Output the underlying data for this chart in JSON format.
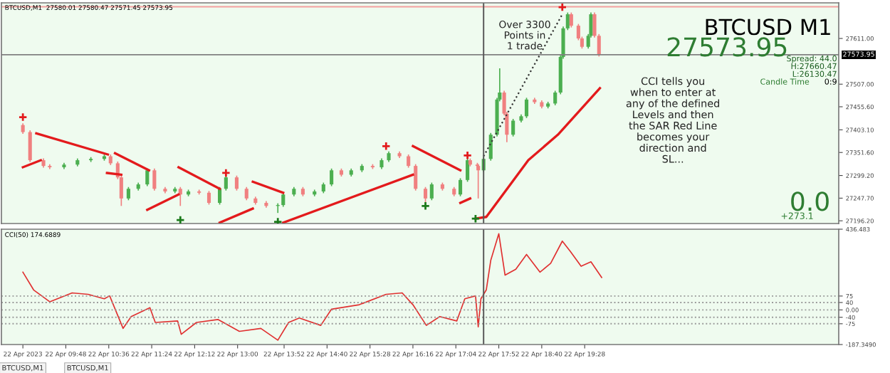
{
  "chart_data": [
    {
      "type": "candlestick",
      "x": [
        "2023-04-22T09:00",
        "2023-04-22T09:08",
        "2023-04-22T09:23",
        "2023-04-22T09:30",
        "2023-04-22T09:46",
        "2023-04-22T10:01",
        "2023-04-22T10:16",
        "2023-04-22T10:31",
        "2023-04-22T10:38",
        "2023-04-22T10:46",
        "2023-04-22T10:50",
        "2023-04-22T10:58",
        "2023-04-22T11:09",
        "2023-04-22T11:19",
        "2023-04-22T11:27",
        "2023-04-22T11:39",
        "2023-04-22T11:50",
        "2023-04-22T11:56",
        "2023-04-22T12:05",
        "2023-04-22T12:17",
        "2023-04-22T12:28",
        "2023-04-22T12:40",
        "2023-04-22T12:47",
        "2023-04-22T12:59",
        "2023-04-22T13:10",
        "2023-04-22T13:20",
        "2023-04-22T13:32",
        "2023-04-22T13:45",
        "2023-04-22T13:51",
        "2023-04-22T14:03",
        "2023-04-22T14:13",
        "2023-04-22T14:26",
        "2023-04-22T14:36",
        "2023-04-22T14:45",
        "2023-04-22T14:56",
        "2023-04-22T15:07",
        "2023-04-22T15:19",
        "2023-04-22T15:31",
        "2023-04-22T15:41",
        "2023-04-22T15:49",
        "2023-04-22T16:01",
        "2023-04-22T16:11",
        "2023-04-22T16:19",
        "2023-04-22T16:30",
        "2023-04-22T16:37",
        "2023-04-22T16:49",
        "2023-04-22T17:02",
        "2023-04-22T17:09",
        "2023-04-22T17:17",
        "2023-04-22T17:20",
        "2023-04-22T17:28",
        "2023-04-22T17:29",
        "2023-04-22T17:35",
        "2023-04-22T17:43",
        "2023-04-22T17:50",
        "2023-04-22T17:53",
        "2023-04-22T17:58",
        "2023-04-22T18:01",
        "2023-04-22T18:08",
        "2023-04-22T18:17",
        "2023-04-22T18:23",
        "2023-04-22T18:32",
        "2023-04-22T18:40",
        "2023-04-22T18:47",
        "2023-04-22T18:55",
        "2023-04-22T19:01",
        "2023-04-22T19:04",
        "2023-04-22T19:09",
        "2023-04-22T19:13",
        "2023-04-22T19:21",
        "2023-04-22T19:25",
        "2023-04-22T19:32",
        "2023-04-22T19:35",
        "2023-04-22T19:39",
        "2023-04-22T19:44"
      ],
      "ohlc": [
        [
          27414,
          27418,
          27394,
          27398
        ],
        [
          27398,
          27402,
          27330,
          27334
        ],
        [
          27334,
          27338,
          27317,
          27321
        ],
        [
          27321,
          27325,
          27314,
          27318
        ],
        [
          27318,
          27328,
          27314,
          27324
        ],
        [
          27324,
          27338,
          27320,
          27334
        ],
        [
          27334,
          27341,
          27330,
          27337
        ],
        [
          27337,
          27347,
          27333,
          27343
        ],
        [
          27343,
          27347,
          27323,
          27327
        ],
        [
          27327,
          27331,
          27291,
          27295
        ],
        [
          27295,
          27299,
          27230,
          27247
        ],
        [
          27247,
          27273,
          27243,
          27269
        ],
        [
          27269,
          27283,
          27265,
          27279
        ],
        [
          27279,
          27315,
          27275,
          27311
        ],
        [
          27311,
          27315,
          27265,
          27269
        ],
        [
          27269,
          27273,
          27259,
          27263
        ],
        [
          27263,
          27273,
          27259,
          27269
        ],
        [
          27269,
          27273,
          27230,
          27256
        ],
        [
          27256,
          27267,
          27252,
          27263
        ],
        [
          27263,
          27267,
          27256,
          27260
        ],
        [
          27260,
          27264,
          27233,
          27237
        ],
        [
          27237,
          27273,
          27233,
          27269
        ],
        [
          27269,
          27299,
          27265,
          27295
        ],
        [
          27295,
          27299,
          27265,
          27269
        ],
        [
          27269,
          27273,
          27243,
          27247
        ],
        [
          27247,
          27251,
          27233,
          27237
        ],
        [
          27237,
          27241,
          27226,
          27230
        ],
        [
          27230,
          27236,
          27214,
          27232
        ],
        [
          27232,
          27260,
          27228,
          27256
        ],
        [
          27256,
          27273,
          27252,
          27269
        ],
        [
          27269,
          27273,
          27252,
          27256
        ],
        [
          27256,
          27267,
          27252,
          27263
        ],
        [
          27263,
          27283,
          27259,
          27279
        ],
        [
          27279,
          27315,
          27275,
          27311
        ],
        [
          27311,
          27315,
          27297,
          27301
        ],
        [
          27301,
          27315,
          27297,
          27311
        ],
        [
          27311,
          27325,
          27307,
          27321
        ],
        [
          27321,
          27325,
          27314,
          27318
        ],
        [
          27318,
          27338,
          27314,
          27334
        ],
        [
          27334,
          27354,
          27330,
          27350
        ],
        [
          27350,
          27354,
          27339,
          27343
        ],
        [
          27343,
          27347,
          27317,
          27321
        ],
        [
          27321,
          27325,
          27265,
          27269
        ],
        [
          27269,
          27273,
          27237,
          27247
        ],
        [
          27247,
          27283,
          27243,
          27279
        ],
        [
          27279,
          27283,
          27265,
          27269
        ],
        [
          27269,
          27273,
          27252,
          27256
        ],
        [
          27256,
          27293,
          27252,
          27289
        ],
        [
          27289,
          27338,
          27285,
          27334
        ],
        [
          27334,
          27338,
          27320,
          27324
        ],
        [
          27324,
          27328,
          27317,
          27321
        ],
        [
          27321,
          27325,
          27247,
          27311
        ],
        [
          27311,
          27341,
          27307,
          27337
        ],
        [
          27337,
          27396,
          27333,
          27392
        ],
        [
          27392,
          27476,
          27388,
          27472
        ],
        [
          27472,
          27543,
          27468,
          27488
        ],
        [
          27488,
          27492,
          27436,
          27440
        ],
        [
          27440,
          27444,
          27375,
          27392
        ],
        [
          27392,
          27428,
          27388,
          27424
        ],
        [
          27424,
          27438,
          27420,
          27434
        ],
        [
          27434,
          27476,
          27430,
          27472
        ],
        [
          27472,
          27476,
          27462,
          27466
        ],
        [
          27466,
          27470,
          27452,
          27456
        ],
        [
          27456,
          27467,
          27452,
          27463
        ],
        [
          27463,
          27492,
          27459,
          27488
        ],
        [
          27488,
          27573,
          27484,
          27569
        ],
        [
          27569,
          27638,
          27565,
          27634
        ],
        [
          27634,
          27670,
          27630,
          27666
        ],
        [
          27666,
          27670,
          27636,
          27640
        ],
        [
          27640,
          27644,
          27607,
          27611
        ],
        [
          27611,
          27615,
          27588,
          27592
        ],
        [
          27592,
          27621,
          27588,
          27617
        ],
        [
          27617,
          27670,
          27613,
          27666
        ],
        [
          27666,
          27670,
          27613,
          27617
        ],
        [
          27617,
          27621,
          27570,
          27574
        ]
      ],
      "colors": [
        "#f08080",
        "#f08080",
        "#f08080",
        "#f08080",
        "#4caf50",
        "#4caf50",
        "#4caf50",
        "#4caf50",
        "#f08080",
        "#f08080",
        "#f08080",
        "#4caf50",
        "#4caf50",
        "#4caf50",
        "#f08080",
        "#f08080",
        "#4caf50",
        "#f08080",
        "#4caf50",
        "#f08080",
        "#f08080",
        "#4caf50",
        "#4caf50",
        "#f08080",
        "#f08080",
        "#f08080",
        "#f08080",
        "#4caf50",
        "#4caf50",
        "#4caf50",
        "#f08080",
        "#4caf50",
        "#4caf50",
        "#4caf50",
        "#f08080",
        "#4caf50",
        "#4caf50",
        "#f08080",
        "#4caf50",
        "#4caf50",
        "#f08080",
        "#f08080",
        "#f08080",
        "#f08080",
        "#4caf50",
        "#f08080",
        "#f08080",
        "#4caf50",
        "#4caf50",
        "#f08080",
        "#f08080",
        "#f08080",
        "#4caf50",
        "#4caf50",
        "#4caf50",
        "#4caf50",
        "#f08080",
        "#f08080",
        "#4caf50",
        "#4caf50",
        "#4caf50",
        "#f08080",
        "#f08080",
        "#4caf50",
        "#4caf50",
        "#4caf50",
        "#4caf50",
        "#4caf50",
        "#f08080",
        "#f08080",
        "#f08080",
        "#4caf50",
        "#4caf50",
        "#f08080",
        "#f08080"
      ],
      "series": [
        {
          "type": "line",
          "color": "#e31a1c",
          "x": [
            "2023-04-22T09:00",
            "2023-04-22T09:20"
          ],
          "values": [
            27318,
            27334
          ]
        },
        {
          "type": "line",
          "color": "#e31a1c",
          "x": [
            "2023-04-22T09:15",
            "2023-04-22T10:35"
          ],
          "values": [
            27395,
            27347
          ]
        },
        {
          "type": "line",
          "color": "#e31a1c",
          "x": [
            "2023-04-22T10:34",
            "2023-04-22T10:50"
          ],
          "values": [
            27305,
            27301
          ]
        },
        {
          "type": "line",
          "color": "#e31a1c",
          "x": [
            "2023-04-22T10:43",
            "2023-04-22T11:21"
          ],
          "values": [
            27350,
            27311
          ]
        },
        {
          "type": "line",
          "color": "#e31a1c",
          "x": [
            "2023-04-22T11:19",
            "2023-04-22T11:54"
          ],
          "values": [
            27221,
            27256
          ]
        },
        {
          "type": "line",
          "color": "#e31a1c",
          "x": [
            "2023-04-22T11:54",
            "2023-04-22T12:40"
          ],
          "values": [
            27318,
            27269
          ]
        },
        {
          "type": "line",
          "color": "#e31a1c",
          "x": [
            "2023-04-22T12:40",
            "2023-04-22T13:17"
          ],
          "values": [
            27192,
            27224
          ]
        },
        {
          "type": "line",
          "color": "#e31a1c",
          "x": [
            "2023-04-22T13:17",
            "2023-04-22T13:51"
          ],
          "values": [
            27285,
            27260
          ]
        },
        {
          "type": "line",
          "color": "#e31a1c",
          "x": [
            "2023-04-22T13:51",
            "2023-04-22T16:16"
          ],
          "values": [
            27192,
            27301
          ]
        },
        {
          "type": "line",
          "color": "#e31a1c",
          "x": [
            "2023-04-22T16:16",
            "2023-04-22T17:09"
          ],
          "values": [
            27366,
            27311
          ]
        },
        {
          "type": "line",
          "color": "#e31a1c",
          "x": [
            "2023-04-22T17:09",
            "2023-04-22T17:20"
          ],
          "values": [
            27237,
            27247
          ]
        },
        {
          "type": "line",
          "color": "#e31a1c",
          "x": [
            "2023-04-22T17:26",
            "2023-04-22T17:38",
            "2023-04-22T18:25",
            "2023-04-22T18:58",
            "2023-04-22T19:45"
          ],
          "values": [
            27201,
            27205,
            27334,
            27392,
            27498
          ]
        },
        {
          "type": "line",
          "color": "#333333",
          "line_style": "dotted",
          "x": [
            "2023-04-22T17:35",
            "2023-04-22T19:03"
          ],
          "values": [
            27343,
            27666
          ]
        },
        {
          "type": "scatter",
          "color": "#e31a1c",
          "marker": "cross",
          "x": [
            "2023-04-22T09:00",
            "2023-04-22T12:47",
            "2023-04-22T15:46",
            "2023-04-22T17:17",
            "2023-04-22T19:03"
          ],
          "values": [
            27432,
            27305,
            27366,
            27345,
            27682
          ]
        },
        {
          "type": "scatter",
          "color": "#1b7a1b",
          "marker": "cross",
          "x": [
            "2023-04-22T11:56",
            "2023-04-22T13:45",
            "2023-04-22T16:30",
            "2023-04-22T17:26"
          ],
          "values": [
            27198,
            27194,
            27230,
            27201
          ]
        }
      ],
      "xlim": [
        "2023-04-22T08:36",
        "2023-04-23T00:12"
      ],
      "ylim": [
        27190,
        27692
      ],
      "yticks": [
        {
          "value": 27611,
          "label": "27611.00"
        },
        {
          "value": 27507,
          "label": "27507.00"
        },
        {
          "value": 27455.6,
          "label": "27455.60"
        },
        {
          "value": 27403.1,
          "label": "27403.10"
        },
        {
          "value": 27351.6,
          "label": "27351.60"
        },
        {
          "value": 27299.2,
          "label": "27299.20"
        },
        {
          "value": 27247.7,
          "label": "27247.70"
        },
        {
          "value": 27196.2,
          "label": "27196.20"
        }
      ],
      "tick_labels": "y",
      "ref_lines": [
        {
          "axis": "y",
          "value": 27573.95,
          "label": "27573.95",
          "color": "#808080"
        },
        {
          "axis": "y",
          "value": 27683,
          "color": "#f4a0a0"
        },
        {
          "axis": "x",
          "value": "2023-04-22T17:35",
          "color": "#555555"
        }
      ],
      "annotations": [
        "BTCUSD,M1  27580.01 27580.47 27571.45 27573.95",
        "BTCUSD M1",
        "27573.95",
        "Spread: 44.0",
        "H:27660.47",
        "L:26130.47",
        "Candle Time",
        "0:9",
        "Over 3300\nPoints in\n1 trade",
        "CCI tells you\nwhen to enter at\nany of the defined\nLevels and then\nthe SAR Red Line\nbecomes your\ndirection and\nSL...",
        "0.0",
        "+273.1"
      ]
    },
    {
      "type": "line",
      "color": "#e03030",
      "x": [
        "2023-04-22T09:00",
        "2023-04-22T09:12",
        "2023-04-22T09:30",
        "2023-04-22T09:55",
        "2023-04-22T10:13",
        "2023-04-22T10:31",
        "2023-04-22T10:37",
        "2023-04-22T10:52",
        "2023-04-22T11:01",
        "2023-04-22T11:22",
        "2023-04-22T11:28",
        "2023-04-22T11:53",
        "2023-04-22T11:57",
        "2023-04-22T12:14",
        "2023-04-22T12:38",
        "2023-04-22T13:02",
        "2023-04-22T13:26",
        "2023-04-22T13:45",
        "2023-04-22T13:57",
        "2023-04-22T14:09",
        "2023-04-22T14:33",
        "2023-04-22T14:45",
        "2023-04-22T15:16",
        "2023-04-22T15:46",
        "2023-04-22T16:04",
        "2023-04-22T16:16",
        "2023-04-22T16:31",
        "2023-04-22T16:46",
        "2023-04-22T17:05",
        "2023-04-22T17:14",
        "2023-04-22T17:26",
        "2023-04-22T17:29",
        "2023-04-22T17:32",
        "2023-04-22T17:38",
        "2023-04-22T17:43",
        "2023-04-22T17:52",
        "2023-04-22T17:59",
        "2023-04-22T18:11",
        "2023-04-22T18:23",
        "2023-04-22T18:38",
        "2023-04-22T18:50",
        "2023-04-22T19:03",
        "2023-04-22T19:12",
        "2023-04-22T19:24",
        "2023-04-22T19:35",
        "2023-04-22T19:47"
      ],
      "values": [
        204,
        108,
        44,
        92,
        84,
        60,
        76,
        -100,
        -36,
        12,
        -68,
        -60,
        -132,
        -68,
        -52,
        -116,
        -100,
        -164,
        -68,
        -44,
        -84,
        4,
        28,
        84,
        92,
        28,
        -84,
        -36,
        -60,
        60,
        76,
        -92,
        60,
        108,
        268,
        412,
        188,
        220,
        300,
        204,
        252,
        372,
        316,
        236,
        260,
        175
      ],
      "xlim": [
        "2023-04-22T08:36",
        "2023-04-23T00:12"
      ],
      "xticks": [
        {
          "value": "2023-04-22T09:00",
          "label": "22 Apr 2023"
        },
        {
          "value": "2023-04-22T09:48",
          "label": "22 Apr 09:48"
        },
        {
          "value": "2023-04-22T10:36",
          "label": "22 Apr 10:36"
        },
        {
          "value": "2023-04-22T11:24",
          "label": "22 Apr 11:24"
        },
        {
          "value": "2023-04-22T12:12",
          "label": "22 Apr 12:12"
        },
        {
          "value": "2023-04-22T13:00",
          "label": "22 Apr 13:00"
        },
        {
          "value": "2023-04-22T13:52",
          "label": "22 Apr 13:52"
        },
        {
          "value": "2023-04-22T14:40",
          "label": "22 Apr 14:40"
        },
        {
          "value": "2023-04-22T15:28",
          "label": "22 Apr 15:28"
        },
        {
          "value": "2023-04-22T16:16",
          "label": "22 Apr 16:16"
        },
        {
          "value": "2023-04-22T17:04",
          "label": "22 Apr 17:04"
        },
        {
          "value": "2023-04-22T17:52",
          "label": "22 Apr 17:52"
        },
        {
          "value": "2023-04-22T18:40",
          "label": "22 Apr 18:40"
        },
        {
          "value": "2023-04-22T19:28",
          "label": "22 Apr 19:28"
        }
      ],
      "ylim": [
        -187.349,
        436.483
      ],
      "yticks": [
        {
          "value": 436.483,
          "label": "436.483"
        },
        75,
        40,
        {
          "value": 0,
          "label": "0.00"
        },
        -40,
        -75,
        {
          "value": -187.349,
          "label": "-187.3490"
        }
      ],
      "ref_lines": [
        {
          "axis": "y",
          "value": 75,
          "color": "#999999",
          "line_style": "dotted"
        },
        {
          "axis": "y",
          "value": 40,
          "color": "#999999",
          "line_style": "dotted"
        },
        {
          "axis": "y",
          "value": 0,
          "color": "#999999",
          "line_style": "dotted"
        },
        {
          "axis": "y",
          "value": -40,
          "color": "#999999",
          "line_style": "dotted"
        },
        {
          "axis": "y",
          "value": -75,
          "color": "#999999",
          "line_style": "dotted"
        },
        {
          "axis": "x",
          "value": "2023-04-22T17:35",
          "color": "#555555"
        }
      ],
      "annotations": [
        "CCI(50) 174.6889",
        "BTCUSD,M1",
        "BTCUSD,M1"
      ]
    }
  ]
}
